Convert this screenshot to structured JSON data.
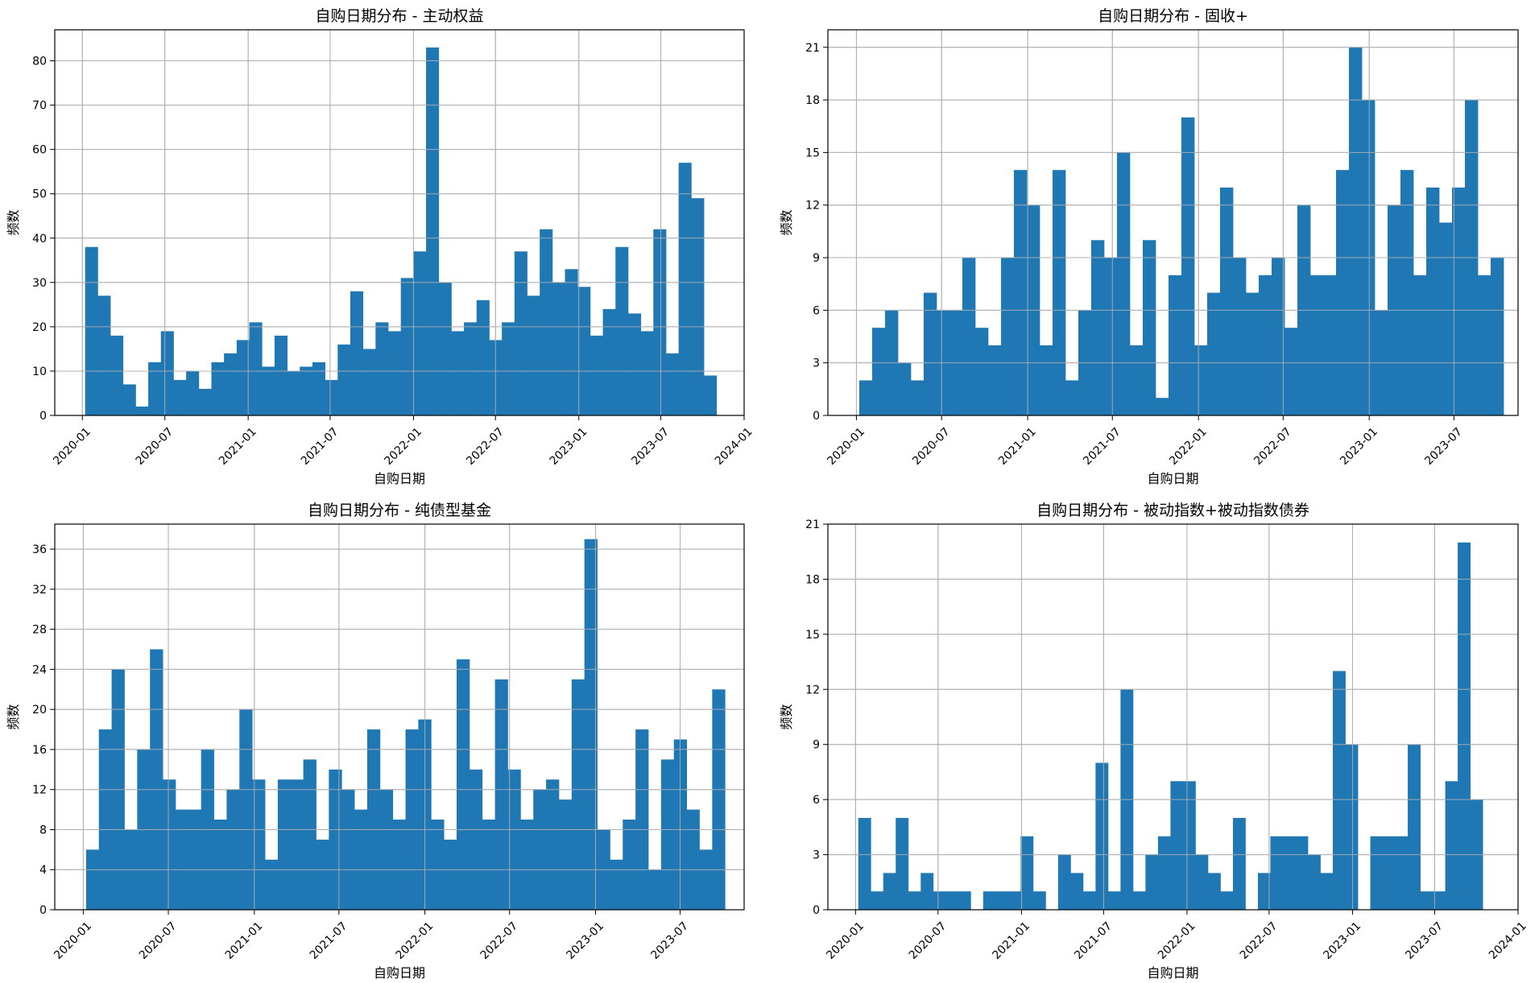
{
  "colors": {
    "bar": "#1f77b4",
    "grid": "#b0b0b0",
    "axis": "#000000"
  },
  "chart_data": [
    {
      "type": "bar",
      "title": "自购日期分布 - 主动权益",
      "xlabel": "自购日期",
      "ylabel": "频数",
      "grid": true,
      "bin_start": "2020-01-07",
      "bin_end": "2023-11-01",
      "values": [
        38,
        27,
        18,
        7,
        2,
        12,
        19,
        8,
        10,
        6,
        12,
        14,
        17,
        21,
        11,
        18,
        10,
        11,
        12,
        8,
        16,
        28,
        15,
        21,
        19,
        31,
        37,
        83,
        30,
        19,
        21,
        26,
        17,
        21,
        37,
        27,
        42,
        30,
        33,
        29,
        18,
        24,
        38,
        23,
        19,
        42,
        14,
        57,
        49,
        9
      ],
      "xlim": [
        "2019-11-01",
        "2024-01-01"
      ],
      "ylim": [
        0,
        87
      ],
      "yticks": [
        0,
        10,
        20,
        30,
        40,
        50,
        60,
        70,
        80
      ],
      "xtick_labels": [
        "2020-01",
        "2020-07",
        "2021-01",
        "2021-07",
        "2022-01",
        "2022-07",
        "2023-01",
        "2023-07",
        "2024-01"
      ]
    },
    {
      "type": "bar",
      "title": "自购日期分布 - 固收+",
      "xlabel": "自购日期",
      "ylabel": "频数",
      "grid": true,
      "bin_start": "2020-01-07",
      "bin_end": "2023-10-15",
      "values": [
        2,
        5,
        6,
        3,
        2,
        7,
        6,
        6,
        9,
        5,
        4,
        9,
        14,
        12,
        4,
        14,
        2,
        6,
        10,
        9,
        15,
        4,
        10,
        1,
        8,
        17,
        4,
        7,
        13,
        9,
        7,
        8,
        9,
        5,
        12,
        8,
        8,
        14,
        21,
        18,
        6,
        12,
        14,
        8,
        13,
        11,
        13,
        18,
        8,
        9
      ],
      "xlim": [
        "2019-11-01",
        "2023-11-15"
      ],
      "ylim": [
        0,
        22
      ],
      "yticks": [
        0,
        3,
        6,
        9,
        12,
        15,
        18,
        21
      ],
      "xtick_labels": [
        "2020-01",
        "2020-07",
        "2021-01",
        "2021-07",
        "2022-01",
        "2022-07",
        "2023-01",
        "2023-07"
      ]
    },
    {
      "type": "bar",
      "title": "自购日期分布 - 纯债型基金",
      "xlabel": "自购日期",
      "ylabel": "频数",
      "grid": true,
      "bin_start": "2020-01-07",
      "bin_end": "2023-10-05",
      "values": [
        6,
        18,
        24,
        8,
        16,
        26,
        13,
        10,
        10,
        16,
        9,
        12,
        20,
        13,
        5,
        13,
        13,
        15,
        7,
        14,
        12,
        10,
        18,
        12,
        9,
        18,
        19,
        9,
        7,
        25,
        14,
        9,
        23,
        14,
        9,
        12,
        13,
        11,
        23,
        37,
        8,
        5,
        9,
        18,
        4,
        15,
        17,
        10,
        6,
        22
      ],
      "xlim": [
        "2019-11-01",
        "2023-11-15"
      ],
      "ylim": [
        0,
        38.5
      ],
      "yticks": [
        0,
        4,
        8,
        12,
        16,
        20,
        24,
        28,
        32,
        36
      ],
      "xtick_labels": [
        "2020-01",
        "2020-07",
        "2021-01",
        "2021-07",
        "2022-01",
        "2022-07",
        "2023-01",
        "2023-07"
      ]
    },
    {
      "type": "bar",
      "title": "自购日期分布 - 被动指数+被动指数债券",
      "xlabel": "自购日期",
      "ylabel": "频数",
      "grid": true,
      "bin_start": "2020-01-07",
      "bin_end": "2023-10-15",
      "values": [
        5,
        1,
        2,
        5,
        1,
        2,
        1,
        1,
        1,
        0,
        1,
        1,
        1,
        4,
        1,
        0,
        3,
        2,
        1,
        8,
        1,
        12,
        1,
        3,
        4,
        7,
        7,
        3,
        2,
        1,
        5,
        0,
        2,
        4,
        4,
        4,
        3,
        2,
        13,
        9,
        0,
        4,
        4,
        4,
        9,
        1,
        1,
        7,
        20,
        6
      ],
      "xlim": [
        "2019-11-01",
        "2024-01-01"
      ],
      "ylim": [
        0,
        21
      ],
      "yticks": [
        0,
        3,
        6,
        9,
        12,
        15,
        18,
        21
      ],
      "xtick_labels": [
        "2020-01",
        "2020-07",
        "2021-01",
        "2021-07",
        "2022-01",
        "2022-07",
        "2023-01",
        "2023-07",
        "2024-01"
      ]
    }
  ]
}
